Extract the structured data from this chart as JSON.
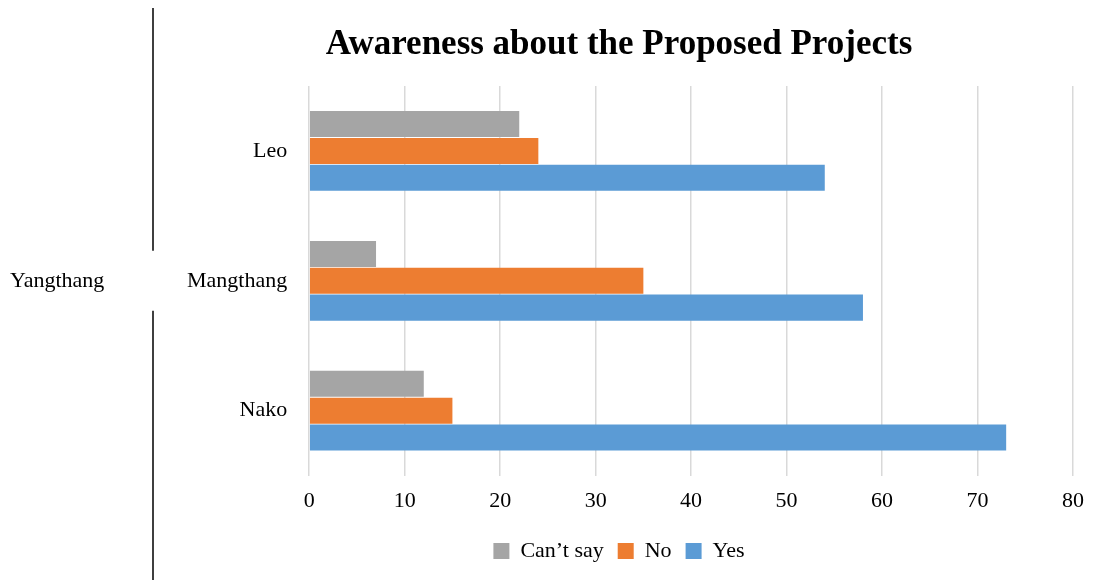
{
  "chart_data": {
    "type": "bar",
    "title": "Awareness about the Proposed Projects",
    "ylabel": "Yangthang",
    "orientation": "horizontal",
    "categories": [
      "Leo",
      "Mangthang",
      "Nako"
    ],
    "series": [
      {
        "name": "Can’t say",
        "color": "#a5a5a5",
        "values": [
          22,
          7,
          12
        ]
      },
      {
        "name": "No",
        "color": "#ed7d31",
        "values": [
          24,
          35,
          15
        ]
      },
      {
        "name": "Yes",
        "color": "#5b9bd5",
        "values": [
          54,
          58,
          73
        ]
      }
    ],
    "xlim": [
      0,
      80
    ],
    "xticks": [
      0,
      10,
      20,
      30,
      40,
      50,
      60,
      70,
      80
    ],
    "grid": "x",
    "legend": "bottom"
  }
}
